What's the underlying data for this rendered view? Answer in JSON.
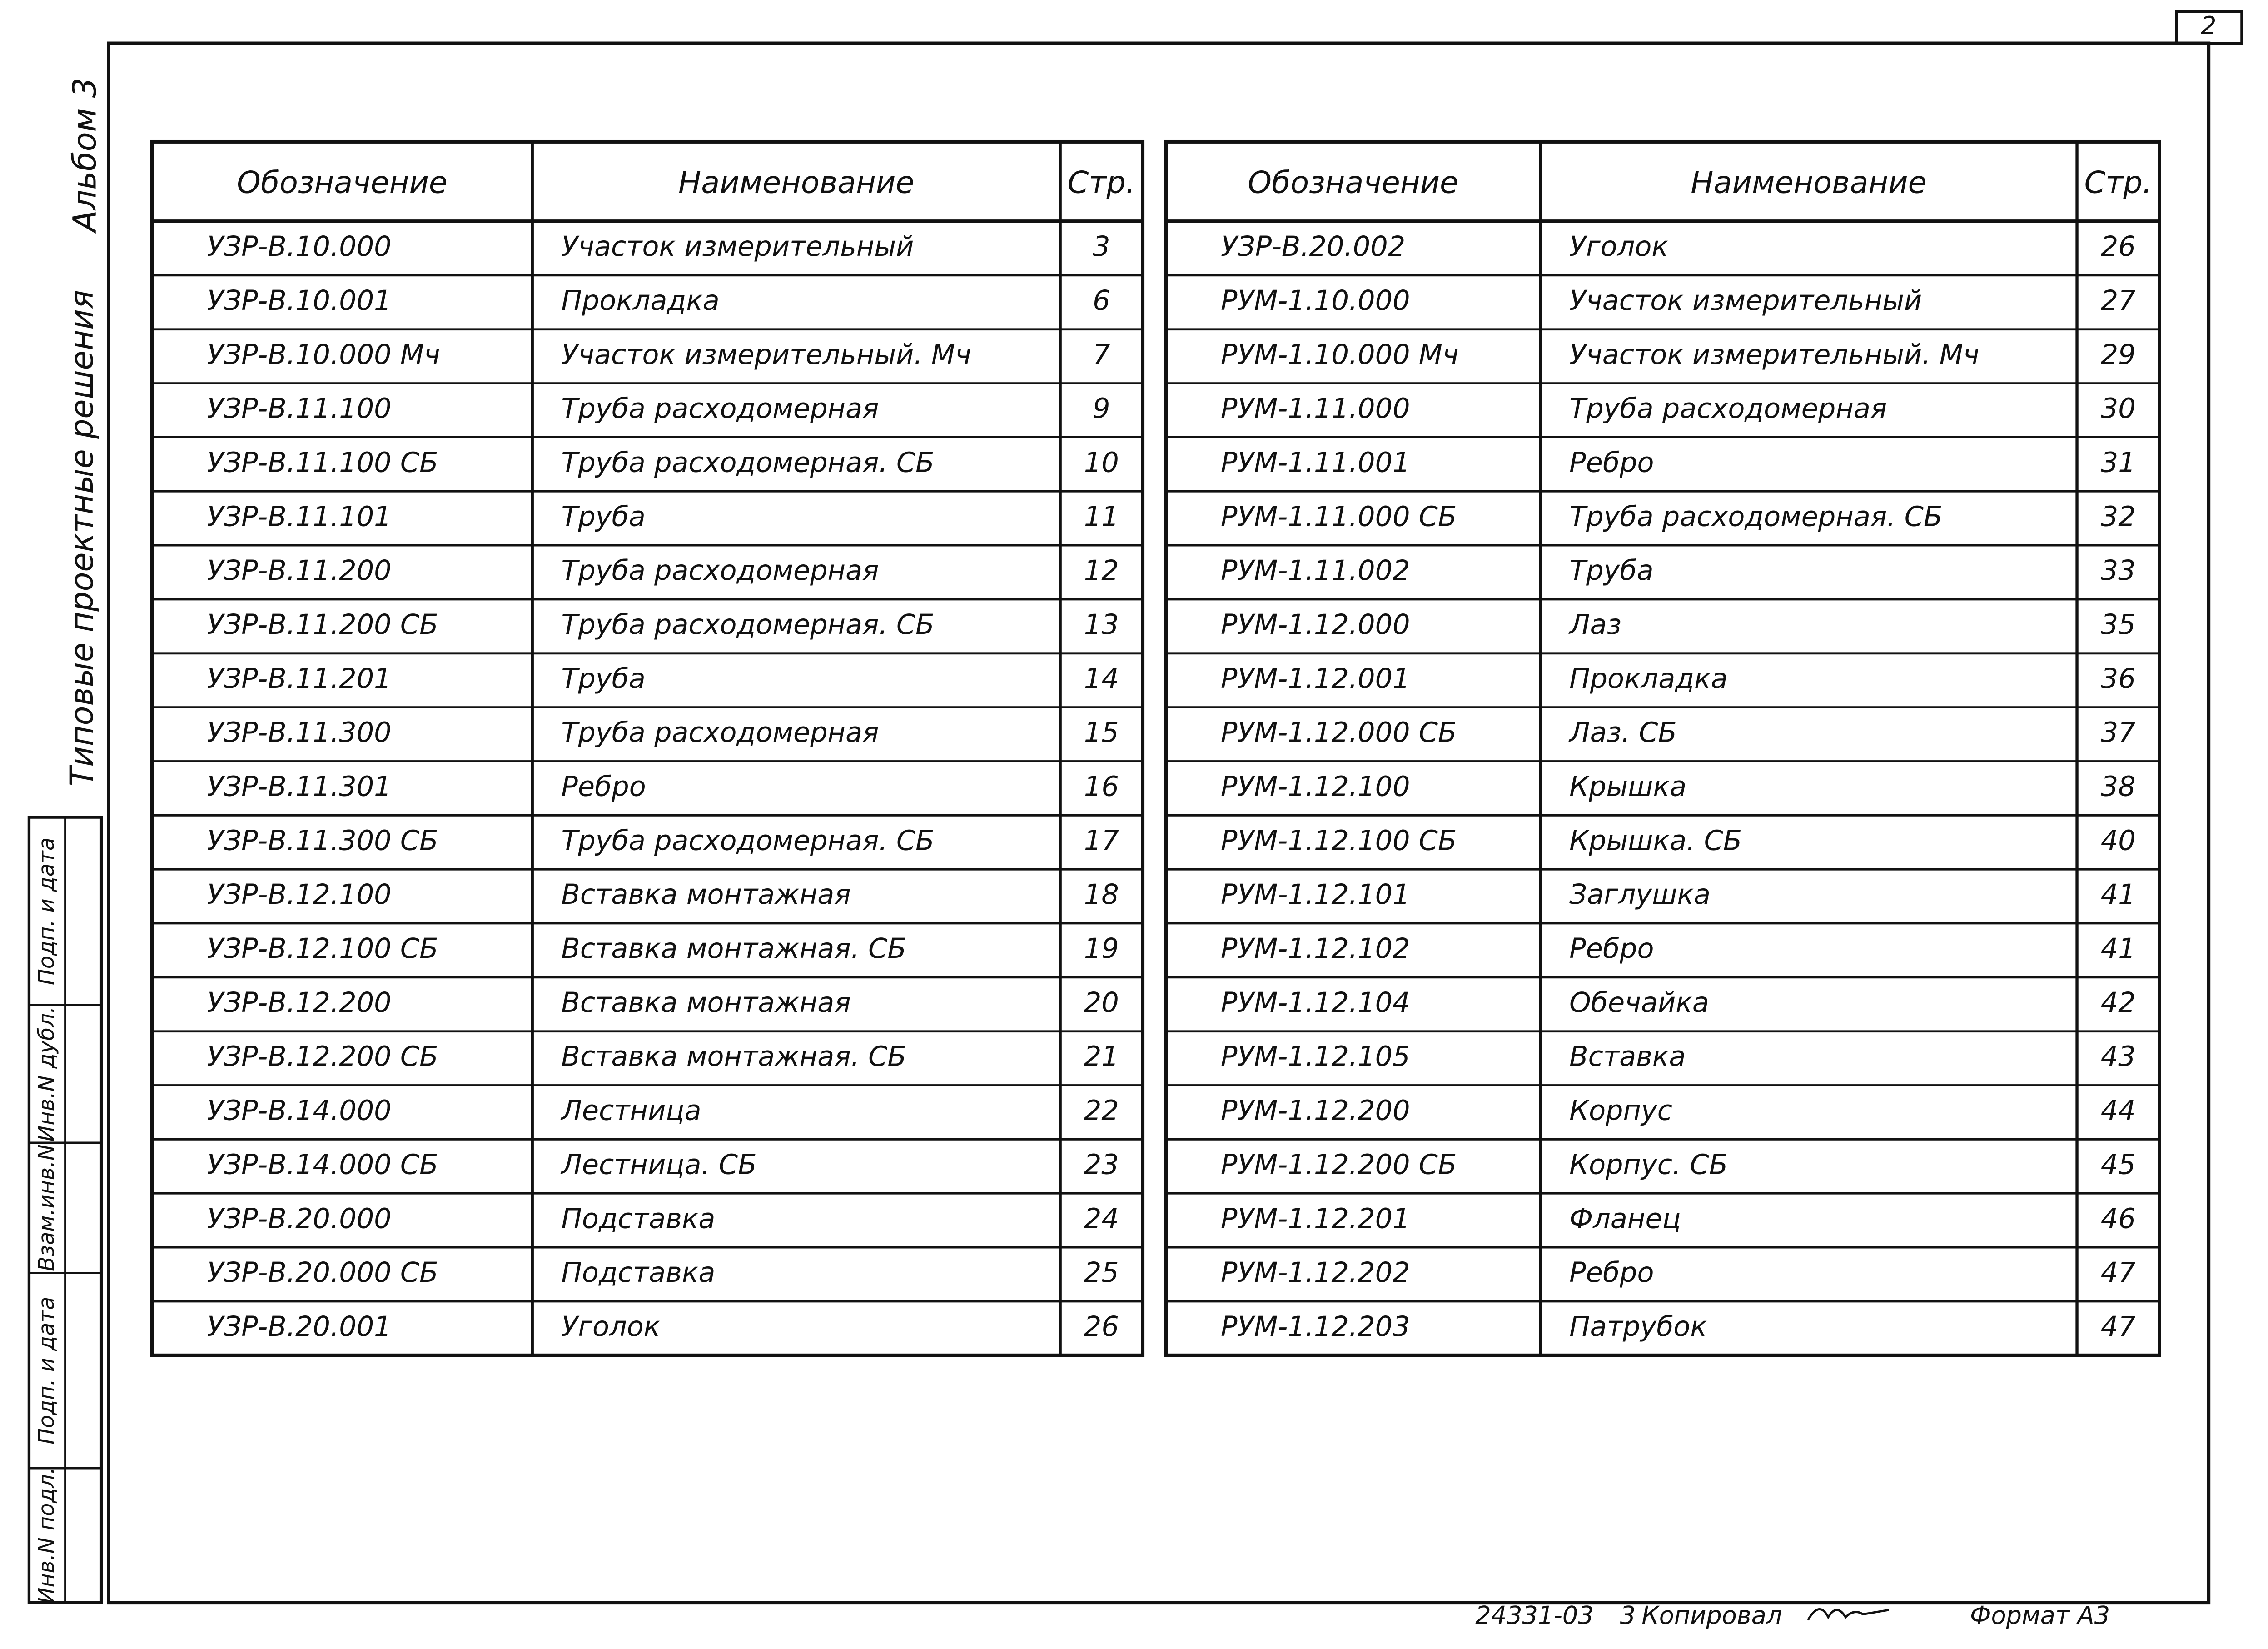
{
  "page_number": "2",
  "side": {
    "album": "Альбом 3",
    "series": "Типовые проектные решения",
    "stamp": [
      "Подп. и дата",
      "Инв.N дубл.",
      "Взам.инв.N",
      "Подп. и дата",
      "Инв.N подл."
    ]
  },
  "tables": [
    {
      "header": [
        "Обозначение",
        "Наименование",
        "Стр."
      ],
      "rows": [
        [
          "УЗР-В.10.000",
          "Участок измерительный",
          "3"
        ],
        [
          "УЗР-В.10.001",
          "Прокладка",
          "6"
        ],
        [
          "УЗР-В.10.000 Мч",
          "Участок измерительный. Мч",
          "7"
        ],
        [
          "УЗР-В.11.100",
          "Труба расходомерная",
          "9"
        ],
        [
          "УЗР-В.11.100 СБ",
          "Труба расходомерная. СБ",
          "10"
        ],
        [
          "УЗР-В.11.101",
          "Труба",
          "11"
        ],
        [
          "УЗР-В.11.200",
          "Труба расходомерная",
          "12"
        ],
        [
          "УЗР-В.11.200 СБ",
          "Труба расходомерная. СБ",
          "13"
        ],
        [
          "УЗР-В.11.201",
          "Труба",
          "14"
        ],
        [
          "УЗР-В.11.300",
          "Труба расходомерная",
          "15"
        ],
        [
          "УЗР-В.11.301",
          "Ребро",
          "16"
        ],
        [
          "УЗР-В.11.300 СБ",
          "Труба расходомерная. СБ",
          "17"
        ],
        [
          "УЗР-В.12.100",
          "Вставка монтажная",
          "18"
        ],
        [
          "УЗР-В.12.100 СБ",
          "Вставка монтажная. СБ",
          "19"
        ],
        [
          "УЗР-В.12.200",
          "Вставка монтажная",
          "20"
        ],
        [
          "УЗР-В.12.200 СБ",
          "Вставка монтажная. СБ",
          "21"
        ],
        [
          "УЗР-В.14.000",
          "Лестница",
          "22"
        ],
        [
          "УЗР-В.14.000 СБ",
          "Лестница. СБ",
          "23"
        ],
        [
          "УЗР-В.20.000",
          "Подставка",
          "24"
        ],
        [
          "УЗР-В.20.000 СБ",
          "Подставка",
          "25"
        ],
        [
          "УЗР-В.20.001",
          "Уголок",
          "26"
        ]
      ]
    },
    {
      "header": [
        "Обозначение",
        "Наименование",
        "Стр."
      ],
      "rows": [
        [
          "УЗР-В.20.002",
          "Уголок",
          "26"
        ],
        [
          "РУМ-1.10.000",
          "Участок измерительный",
          "27"
        ],
        [
          "РУМ-1.10.000 Мч",
          "Участок измерительный. Мч",
          "29"
        ],
        [
          "РУМ-1.11.000",
          "Труба расходомерная",
          "30"
        ],
        [
          "РУМ-1.11.001",
          "Ребро",
          "31"
        ],
        [
          "РУМ-1.11.000 СБ",
          "Труба расходомерная. СБ",
          "32"
        ],
        [
          "РУМ-1.11.002",
          "Труба",
          "33"
        ],
        [
          "РУМ-1.12.000",
          "Лаз",
          "35"
        ],
        [
          "РУМ-1.12.001",
          "Прокладка",
          "36"
        ],
        [
          "РУМ-1.12.000 СБ",
          "Лаз. СБ",
          "37"
        ],
        [
          "РУМ-1.12.100",
          "Крышка",
          "38"
        ],
        [
          "РУМ-1.12.100 СБ",
          "Крышка. СБ",
          "40"
        ],
        [
          "РУМ-1.12.101",
          "Заглушка",
          "41"
        ],
        [
          "РУМ-1.12.102",
          "Ребро",
          "41"
        ],
        [
          "РУМ-1.12.104",
          "Обечайка",
          "42"
        ],
        [
          "РУМ-1.12.105",
          "Вставка",
          "43"
        ],
        [
          "РУМ-1.12.200",
          "Корпус",
          "44"
        ],
        [
          "РУМ-1.12.200 СБ",
          "Корпус. СБ",
          "45"
        ],
        [
          "РУМ-1.12.201",
          "Фланец",
          "46"
        ],
        [
          "РУМ-1.12.202",
          "Ребро",
          "47"
        ],
        [
          "РУМ-1.12.203",
          "Патрубок",
          "47"
        ]
      ]
    }
  ],
  "footer": {
    "code": "24331-03",
    "sheet": "3",
    "copied": "Копировал",
    "format": "Формат А3"
  }
}
